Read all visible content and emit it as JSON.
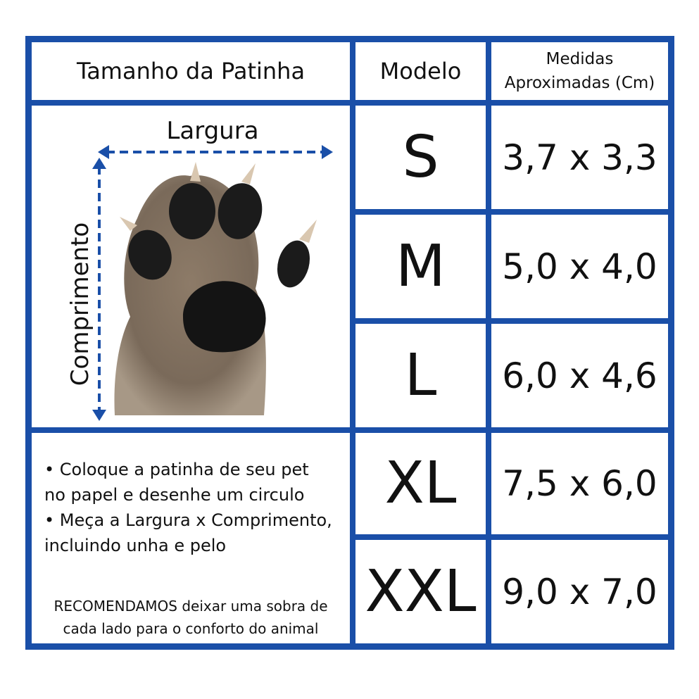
{
  "header": {
    "paw_size": "Tamanho da Patinha",
    "model": "Modelo",
    "measures_line1": "Medidas",
    "measures_line2": "Aproximadas (Cm)"
  },
  "diagram": {
    "width_label": "Largura",
    "length_label": "Comprimento"
  },
  "sizes": [
    {
      "model": "S",
      "measure": "3,7 x 3,3"
    },
    {
      "model": "M",
      "measure": "5,0 x 4,0"
    },
    {
      "model": "L",
      "measure": "6,0 x 4,6"
    },
    {
      "model": "XL",
      "measure": "7,5 x 6,0"
    },
    {
      "model": "XXL",
      "measure": "9,0 x 7,0"
    }
  ],
  "instructions": {
    "line1": "• Coloque a patinha de seu pet",
    "line2": "no papel e desenhe um circulo",
    "line3": "• Meça a Largura x Comprimento,",
    "line4": "incluindo unha e pelo",
    "note_line1": "RECOMENDAMOS deixar uma sobra de",
    "note_line2": "cada lado para o conforto do animal"
  },
  "colors": {
    "border": "#1a4fa8",
    "arrow": "#1a4fa8"
  }
}
